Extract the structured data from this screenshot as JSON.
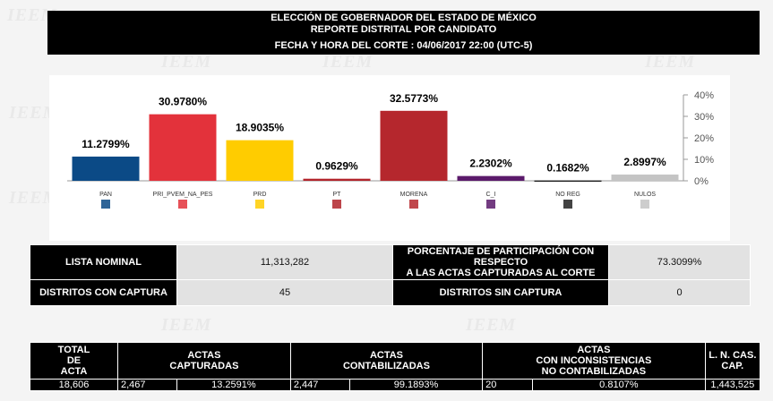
{
  "watermark": "IEEM",
  "header": {
    "line1": "ELECCIÓN DE GOBERNADOR DEL ESTADO DE MÉXICO",
    "line2": "REPORTE DISTRITAL POR CANDIDATO",
    "line3": "FECHA Y HORA DEL CORTE : 04/06/2017 22:00 (UTC-5)"
  },
  "chart_data": {
    "type": "bar",
    "categories": [
      "PAN",
      "PRI_PVEM_NA_PES",
      "PRD",
      "PT",
      "MORENA",
      "C_I",
      "NO REG",
      "NULOS"
    ],
    "values": [
      11.2799,
      30.978,
      18.9035,
      0.9629,
      32.5773,
      2.2302,
      0.1682,
      2.8997
    ],
    "value_labels": [
      "11.2799%",
      "30.9780%",
      "18.9035%",
      "0.9629%",
      "32.5773%",
      "2.2302%",
      "0.1682%",
      "2.8997%"
    ],
    "colors": [
      "#0b4a86",
      "#e3323b",
      "#ffcc00",
      "#b2242b",
      "#b5272d",
      "#5b1a6b",
      "#222222",
      "#c4c4c4"
    ],
    "ylim": [
      0,
      40
    ],
    "yticks": [
      "0%",
      "10%",
      "20%",
      "30%",
      "40%"
    ],
    "y_axis_side": "right",
    "grid": false
  },
  "stats": {
    "lista_nominal_label": "LISTA NOMINAL",
    "lista_nominal_value": "11,313,282",
    "participacion_label_1": "PORCENTAJE DE PARTICIPACIÓN CON",
    "participacion_label_2": "RESPECTO",
    "participacion_label_3": "A LAS ACTAS CAPTURADAS AL CORTE",
    "participacion_value": "73.3099%",
    "con_captura_label": "DISTRITOS CON CAPTURA",
    "con_captura_value": "45",
    "sin_captura_label": "DISTRITOS SIN CAPTURA",
    "sin_captura_value": "0"
  },
  "actas": {
    "h_total_1": "TOTAL",
    "h_total_2": "DE",
    "h_total_3": "ACTA",
    "h_capt_1": "ACTAS",
    "h_capt_2": "CAPTURADAS",
    "h_cont_1": "ACTAS",
    "h_cont_2": "CONTABILIZADAS",
    "h_inc_1": "ACTAS",
    "h_inc_2": "CON INCONSISTENCIAS",
    "h_inc_3": "NO CONTABILIZADAS",
    "h_ln_1": "L. N. CAS.",
    "h_ln_2": "CAP.",
    "total": "18,606",
    "capt_n": "2,467",
    "capt_pct": "13.2591%",
    "cont_n": "2,447",
    "cont_pct": "99.1893%",
    "inc_n": "20",
    "inc_pct": "0.8107%",
    "ln": "1,443,525"
  }
}
